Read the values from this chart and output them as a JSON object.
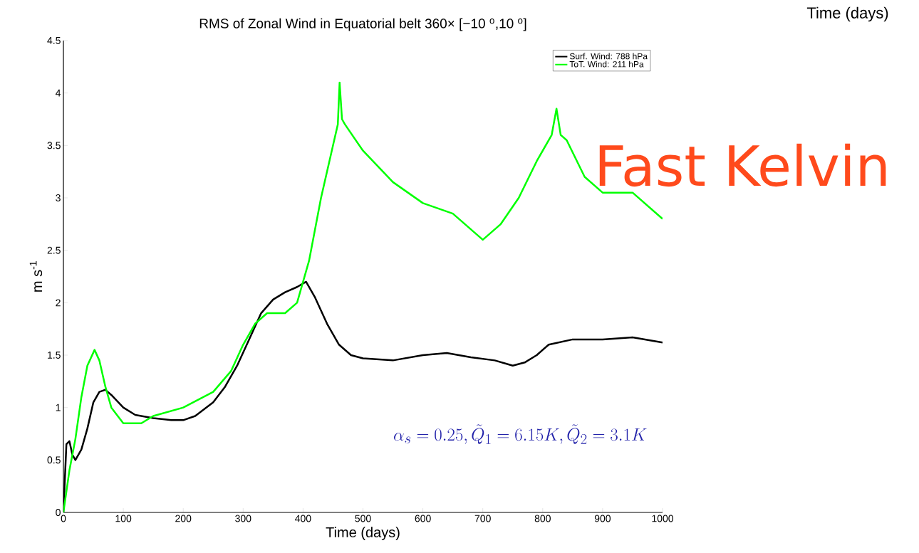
{
  "chart_data": {
    "type": "line",
    "title": "RMS of Zonal Wind in Equatorial belt 360× [−10 $^{o}$,10 $^{o}$]",
    "xlabel": "Time (days)",
    "ylabel": "m s$^{-1}$",
    "xlim": [
      0,
      1000
    ],
    "ylim": [
      0,
      4.5
    ],
    "xticks": [
      0,
      100,
      200,
      300,
      400,
      500,
      600,
      700,
      800,
      900,
      1000
    ],
    "yticks": [
      0,
      0.5,
      1,
      1.5,
      2,
      2.5,
      3,
      3.5,
      4,
      4.5
    ],
    "legend": "top right",
    "annotations": [
      "Fast Kelvin",
      "\\alpha_s = 0.25, \\tilde{Q}_1 = 6.15K, \\tilde{Q}_2 = 3.1K",
      "Time (days)"
    ],
    "series": [
      {
        "name": "Surf. Wind: 788 hPa",
        "color": "#000000",
        "x": [
          0,
          5,
          10,
          15,
          20,
          30,
          40,
          50,
          60,
          70,
          80,
          100,
          120,
          150,
          180,
          200,
          220,
          250,
          270,
          290,
          310,
          330,
          350,
          370,
          390,
          405,
          420,
          440,
          460,
          480,
          500,
          550,
          600,
          640,
          680,
          720,
          750,
          770,
          790,
          810,
          850,
          900,
          950,
          1000
        ],
        "values": [
          0,
          0.65,
          0.68,
          0.55,
          0.5,
          0.6,
          0.8,
          1.05,
          1.15,
          1.17,
          1.12,
          1.0,
          0.93,
          0.9,
          0.88,
          0.88,
          0.92,
          1.05,
          1.2,
          1.4,
          1.65,
          1.9,
          2.03,
          2.1,
          2.15,
          2.2,
          2.05,
          1.8,
          1.6,
          1.5,
          1.47,
          1.45,
          1.5,
          1.52,
          1.48,
          1.45,
          1.4,
          1.43,
          1.5,
          1.6,
          1.65,
          1.65,
          1.67,
          1.62
        ]
      },
      {
        "name": "ToT. Wind: 211 hPa",
        "color": "#00ff00",
        "x": [
          0,
          10,
          20,
          30,
          40,
          52,
          60,
          70,
          80,
          100,
          130,
          150,
          200,
          250,
          280,
          300,
          320,
          340,
          370,
          390,
          410,
          430,
          450,
          458,
          461,
          465,
          470,
          500,
          550,
          600,
          650,
          700,
          730,
          760,
          790,
          815,
          823,
          830,
          840,
          870,
          900,
          950,
          1000
        ],
        "values": [
          0,
          0.4,
          0.7,
          1.1,
          1.4,
          1.55,
          1.45,
          1.2,
          1.0,
          0.85,
          0.85,
          0.92,
          1.0,
          1.15,
          1.35,
          1.6,
          1.8,
          1.9,
          1.9,
          2.0,
          2.4,
          3.0,
          3.5,
          3.7,
          4.1,
          3.75,
          3.7,
          3.45,
          3.15,
          2.95,
          2.85,
          2.6,
          2.75,
          3.0,
          3.35,
          3.6,
          3.85,
          3.6,
          3.55,
          3.2,
          3.05,
          3.05,
          2.8
        ]
      }
    ]
  }
}
